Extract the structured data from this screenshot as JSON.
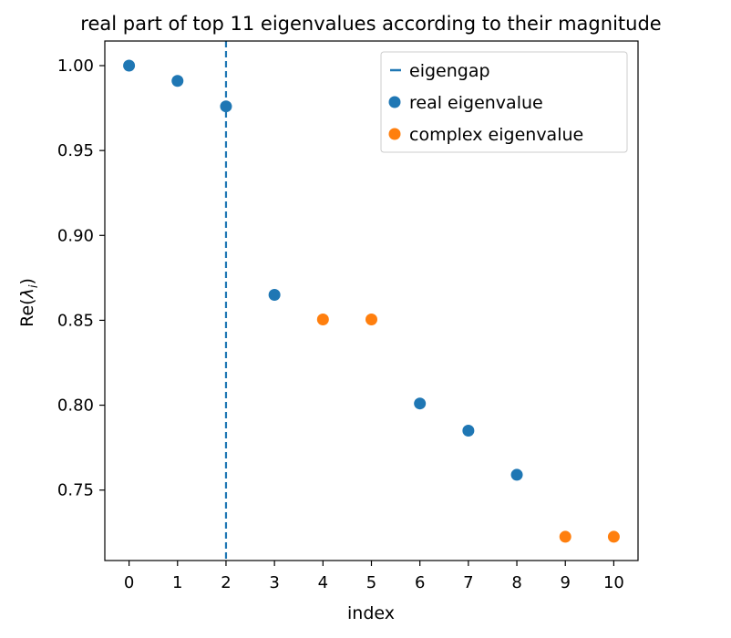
{
  "chart_data": {
    "type": "scatter",
    "title": "real part of top 11 eigenvalues according to their magnitude",
    "xlabel": "index",
    "ylabel_prefix": "Re(",
    "ylabel_symbol": "λ",
    "ylabel_subscript": "i",
    "ylabel_suffix": ")",
    "xlim": [
      -0.5,
      10.5
    ],
    "ylim": [
      0.7085,
      1.0145
    ],
    "xticks": [
      0,
      1,
      2,
      3,
      4,
      5,
      6,
      7,
      8,
      9,
      10
    ],
    "xtick_labels": [
      "0",
      "1",
      "2",
      "3",
      "4",
      "5",
      "6",
      "7",
      "8",
      "9",
      "10"
    ],
    "yticks": [
      0.75,
      0.8,
      0.85,
      0.9,
      0.95,
      1.0
    ],
    "ytick_labels": [
      "0.75",
      "0.80",
      "0.85",
      "0.90",
      "0.95",
      "1.00"
    ],
    "grid": false,
    "legend_position": "top-right",
    "series": [
      {
        "name": "real eigenvalue",
        "color": "#1f77b4",
        "x": [
          0,
          1,
          2,
          3,
          6,
          7,
          8
        ],
        "y": [
          1.0,
          0.991,
          0.976,
          0.865,
          0.801,
          0.785,
          0.759
        ]
      },
      {
        "name": "complex eigenvalue",
        "color": "#ff7f0e",
        "x": [
          4,
          5,
          9,
          10
        ],
        "y": [
          0.8505,
          0.8505,
          0.7225,
          0.7225
        ]
      }
    ],
    "eigengap": {
      "name": "eigengap",
      "x": 2,
      "color": "#1f77b4",
      "style": "dashed"
    }
  }
}
